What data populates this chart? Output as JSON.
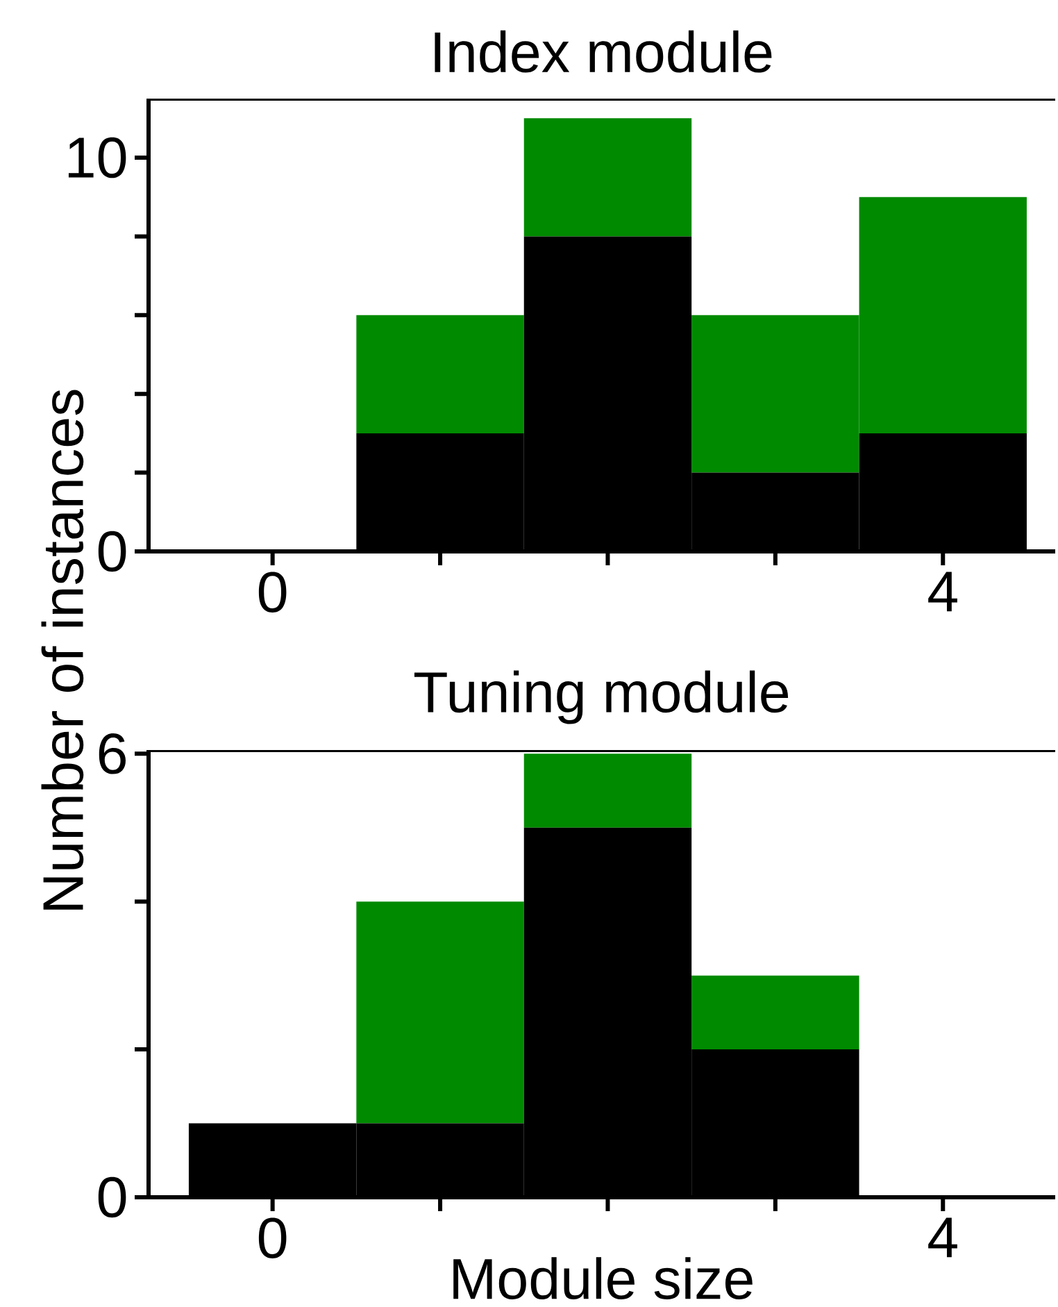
{
  "chart_data": [
    {
      "type": "bar",
      "title": "Index module",
      "stacked": true,
      "x": [
        0,
        1,
        2,
        3,
        4
      ],
      "xlim": [
        -0.74,
        4.67
      ],
      "ylim": [
        0,
        11.5
      ],
      "xticks": [
        0,
        {
          "value": 1,
          "label": null
        },
        {
          "value": 2,
          "label": null
        },
        {
          "value": 3,
          "label": null
        },
        4
      ],
      "yticks": [
        0,
        {
          "value": 2,
          "label": null
        },
        {
          "value": 4,
          "label": null
        },
        {
          "value": 6,
          "label": null
        },
        {
          "value": 8,
          "label": null
        },
        10
      ],
      "ylabel": "Number of instances",
      "series": [
        {
          "color": "#000000",
          "values": [
            0,
            3,
            8,
            2,
            3
          ]
        },
        {
          "color": "#008a00",
          "values": [
            0,
            3,
            3,
            4,
            6
          ]
        }
      ]
    },
    {
      "type": "bar",
      "title": "Tuning module",
      "stacked": true,
      "x": [
        0,
        1,
        2,
        3,
        4
      ],
      "xlim": [
        -0.74,
        4.67
      ],
      "ylim": [
        0,
        6.05
      ],
      "xticks": [
        0,
        {
          "value": 1,
          "label": null
        },
        {
          "value": 2,
          "label": null
        },
        {
          "value": 3,
          "label": null
        },
        4
      ],
      "yticks": [
        0,
        {
          "value": 2,
          "label": null
        },
        {
          "value": 4,
          "label": null
        },
        6
      ],
      "xlabel": "Module size",
      "series": [
        {
          "color": "#000000",
          "values": [
            1,
            1,
            5,
            2,
            0
          ]
        },
        {
          "color": "#008a00",
          "values": [
            0,
            3,
            1,
            1,
            0
          ]
        }
      ]
    }
  ]
}
